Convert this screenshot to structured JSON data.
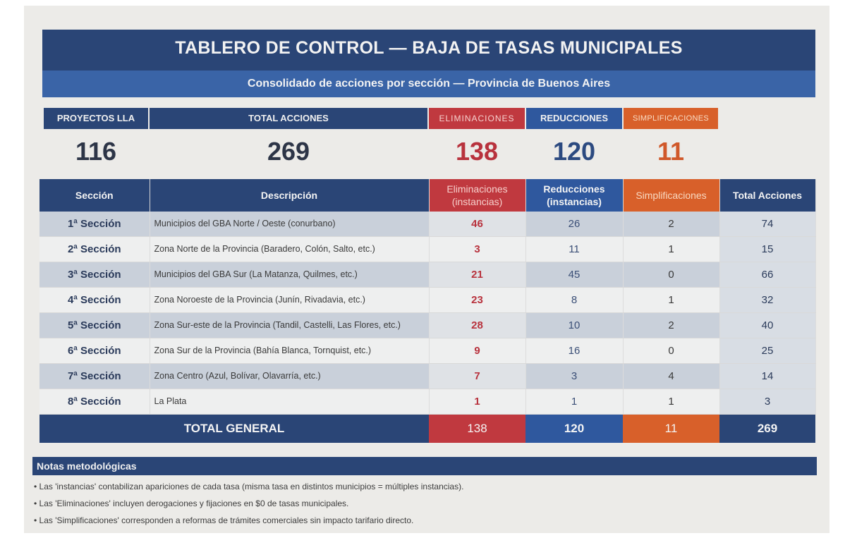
{
  "title": "TABLERO DE CONTROL — BAJA DE TASAS MUNICIPALES",
  "subtitle": "Consolidado de acciones por sección — Provincia de Buenos Aires",
  "colors": {
    "navy": "#2a4576",
    "blue": "#3a64a7",
    "red": "#c0393f",
    "orange": "#d8602a"
  },
  "kpis": {
    "proyectos": {
      "label": "PROYECTOS LLA",
      "value": "116"
    },
    "total": {
      "label": "TOTAL ACCIONES",
      "value": "269"
    },
    "eliminaciones": {
      "label": "ELIMINACIONES",
      "value": "138"
    },
    "reducciones": {
      "label": "REDUCCIONES",
      "value": "120"
    },
    "simplificaciones": {
      "label": "SIMPLIFICACIONES",
      "value": "11"
    }
  },
  "table": {
    "headers": {
      "seccion": "Sección",
      "descripcion": "Descripción",
      "eliminaciones": "Eliminaciones (instancias)",
      "reducciones": "Reducciones (instancias)",
      "simplificaciones": "Simplificaciones",
      "total": "Total Acciones"
    },
    "rows": [
      {
        "seccion": "1ª Sección",
        "descripcion": "Municipios del GBA Norte / Oeste (conurbano)",
        "elim": "46",
        "red": "26",
        "simp": "2",
        "total": "74"
      },
      {
        "seccion": "2ª Sección",
        "descripcion": "Zona Norte de la Provincia (Baradero, Colón, Salto, etc.)",
        "elim": "3",
        "red": "11",
        "simp": "1",
        "total": "15"
      },
      {
        "seccion": "3ª Sección",
        "descripcion": "Municipios del GBA Sur (La Matanza, Quilmes, etc.)",
        "elim": "21",
        "red": "45",
        "simp": "0",
        "total": "66"
      },
      {
        "seccion": "4ª Sección",
        "descripcion": "Zona Noroeste de la Provincia (Junín, Rivadavia, etc.)",
        "elim": "23",
        "red": "8",
        "simp": "1",
        "total": "32"
      },
      {
        "seccion": "5ª Sección",
        "descripcion": "Zona Sur-este de la Provincia (Tandil, Castelli, Las Flores, etc.)",
        "elim": "28",
        "red": "10",
        "simp": "2",
        "total": "40"
      },
      {
        "seccion": "6ª Sección",
        "descripcion": "Zona Sur de la Provincia (Bahía Blanca, Tornquist, etc.)",
        "elim": "9",
        "red": "16",
        "simp": "0",
        "total": "25"
      },
      {
        "seccion": "7ª Sección",
        "descripcion": "Zona Centro (Azul, Bolívar, Olavarría, etc.)",
        "elim": "7",
        "red": "3",
        "simp": "4",
        "total": "14"
      },
      {
        "seccion": "8ª Sección",
        "descripcion": "La Plata",
        "elim": "1",
        "red": "1",
        "simp": "1",
        "total": "3"
      }
    ],
    "total_row": {
      "label": "TOTAL GENERAL",
      "elim": "138",
      "red": "120",
      "simp": "11",
      "total": "269"
    }
  },
  "notes": {
    "heading": "Notas metodológicas",
    "items": [
      "• Las 'instancias' contabilizan apariciones de cada tasa (misma tasa en distintos municipios = múltiples instancias).",
      "• Las 'Eliminaciones' incluyen derogaciones y fijaciones en $0 de tasas municipales.",
      "• Las 'Simplificaciones' corresponden a reformas de trámites comerciales sin impacto tarifario directo."
    ]
  }
}
